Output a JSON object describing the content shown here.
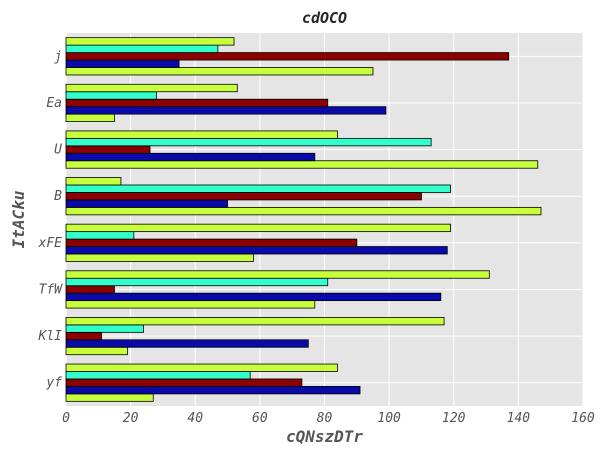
{
  "chart_data": {
    "type": "bar",
    "orientation": "horizontal",
    "title": "cdOCO",
    "xlabel": "cQNszDTr",
    "ylabel": "ItACku",
    "xlim": [
      0,
      160
    ],
    "xticks": [
      0,
      20,
      40,
      60,
      80,
      100,
      120,
      140,
      160
    ],
    "grid": true,
    "categories": [
      "yf",
      "KlI",
      "TfW",
      "xFE",
      "B",
      "U",
      "Ea",
      "j"
    ],
    "series": [
      {
        "color": "#c8ff3c",
        "values": [
          27,
          19,
          77,
          58,
          147,
          146,
          15,
          95
        ]
      },
      {
        "color": "#0a0aaa",
        "values": [
          91,
          75,
          116,
          118,
          50,
          77,
          99,
          35
        ]
      },
      {
        "color": "#8b0000",
        "values": [
          73,
          11,
          15,
          90,
          110,
          26,
          81,
          137
        ]
      },
      {
        "color": "#33ffcc",
        "values": [
          57,
          24,
          81,
          21,
          119,
          113,
          28,
          47
        ]
      },
      {
        "color": "#c8ff3c",
        "values": [
          84,
          117,
          131,
          119,
          17,
          84,
          53,
          52
        ]
      }
    ]
  }
}
